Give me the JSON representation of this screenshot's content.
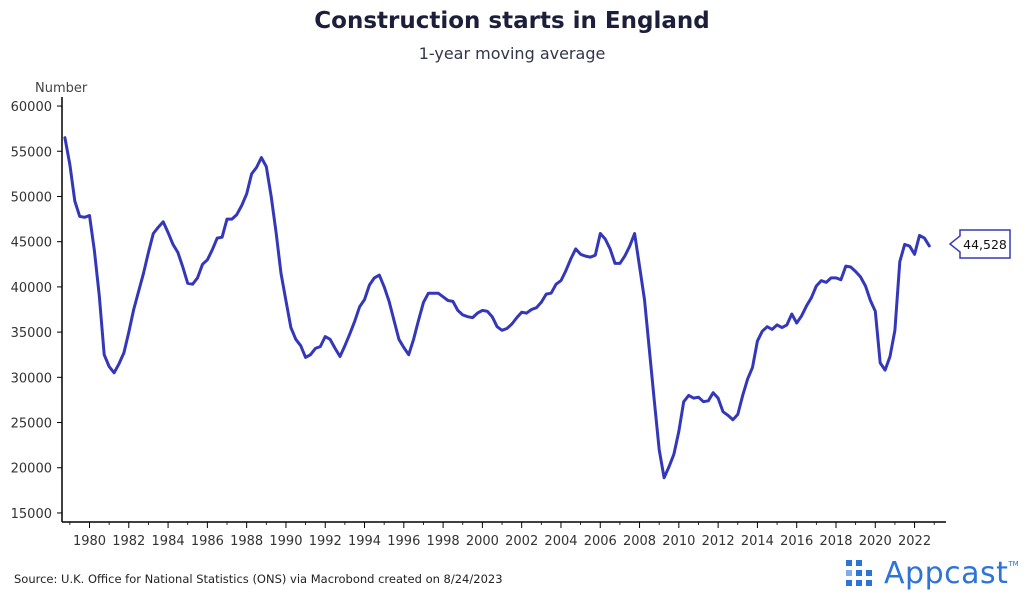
{
  "chart_data": {
    "type": "line",
    "title": "Construction starts in England",
    "subtitle": "1-year moving average",
    "ylabel": "Number",
    "xlabel": "",
    "ylim": [
      14000,
      61000
    ],
    "xlim": [
      1978.6,
      2023.6
    ],
    "y_ticks": [
      15000,
      20000,
      25000,
      30000,
      35000,
      40000,
      45000,
      50000,
      55000,
      60000
    ],
    "x_ticks": [
      1980,
      1982,
      1984,
      1986,
      1988,
      1990,
      1992,
      1994,
      1996,
      1998,
      2000,
      2002,
      2004,
      2006,
      2008,
      2010,
      2012,
      2014,
      2016,
      2018,
      2020,
      2022
    ],
    "color": "#3438b8",
    "last_value_label": "44,528",
    "series": [
      {
        "name": "Construction starts",
        "x": [
          1978.75,
          1979.0,
          1979.25,
          1979.5,
          1979.75,
          1980.0,
          1980.25,
          1980.5,
          1980.75,
          1981.0,
          1981.25,
          1981.5,
          1981.75,
          1982.0,
          1982.25,
          1982.5,
          1982.75,
          1983.0,
          1983.25,
          1983.5,
          1983.75,
          1984.0,
          1984.25,
          1984.5,
          1984.75,
          1985.0,
          1985.25,
          1985.5,
          1985.75,
          1986.0,
          1986.25,
          1986.5,
          1986.75,
          1987.0,
          1987.25,
          1987.5,
          1987.75,
          1988.0,
          1988.25,
          1988.5,
          1988.75,
          1989.0,
          1989.25,
          1989.5,
          1989.75,
          1990.0,
          1990.25,
          1990.5,
          1990.75,
          1991.0,
          1991.25,
          1991.5,
          1991.75,
          1992.0,
          1992.25,
          1992.5,
          1992.75,
          1993.0,
          1993.25,
          1993.5,
          1993.75,
          1994.0,
          1994.25,
          1994.5,
          1994.75,
          1995.0,
          1995.25,
          1995.5,
          1995.75,
          1996.0,
          1996.25,
          1996.5,
          1996.75,
          1997.0,
          1997.25,
          1997.5,
          1997.75,
          1998.0,
          1998.25,
          1998.5,
          1998.75,
          1999.0,
          1999.25,
          1999.5,
          1999.75,
          2000.0,
          2000.25,
          2000.5,
          2000.75,
          2001.0,
          2001.25,
          2001.5,
          2001.75,
          2002.0,
          2002.25,
          2002.5,
          2002.75,
          2003.0,
          2003.25,
          2003.5,
          2003.75,
          2004.0,
          2004.25,
          2004.5,
          2004.75,
          2005.0,
          2005.25,
          2005.5,
          2005.75,
          2006.0,
          2006.25,
          2006.5,
          2006.75,
          2007.0,
          2007.25,
          2007.5,
          2007.75,
          2008.0,
          2008.25,
          2008.5,
          2008.75,
          2009.0,
          2009.25,
          2009.5,
          2009.75,
          2010.0,
          2010.25,
          2010.5,
          2010.75,
          2011.0,
          2011.25,
          2011.5,
          2011.75,
          2012.0,
          2012.25,
          2012.5,
          2012.75,
          2013.0,
          2013.25,
          2013.5,
          2013.75,
          2014.0,
          2014.25,
          2014.5,
          2014.75,
          2015.0,
          2015.25,
          2015.5,
          2015.75,
          2016.0,
          2016.25,
          2016.5,
          2016.75,
          2017.0,
          2017.25,
          2017.5,
          2017.75,
          2018.0,
          2018.25,
          2018.5,
          2018.75,
          2019.0,
          2019.25,
          2019.5,
          2019.75,
          2020.0,
          2020.25,
          2020.5,
          2020.75,
          2021.0,
          2021.25,
          2021.5,
          2021.75,
          2022.0,
          2022.25,
          2022.5,
          2022.75
        ],
        "values": [
          56500,
          53500,
          49500,
          47800,
          47700,
          47900,
          44000,
          39000,
          32500,
          31200,
          30500,
          31500,
          32700,
          35000,
          37500,
          39500,
          41500,
          43800,
          45900,
          46600,
          47200,
          46000,
          44700,
          43800,
          42200,
          40400,
          40300,
          41000,
          42500,
          43000,
          44100,
          45400,
          45500,
          47500,
          47500,
          48000,
          49000,
          50300,
          52500,
          53200,
          54300,
          53300,
          50000,
          46000,
          41500,
          38500,
          35500,
          34200,
          33500,
          32200,
          32500,
          33200,
          33400,
          34500,
          34200,
          33200,
          32300,
          33500,
          34800,
          36200,
          37800,
          38600,
          40200,
          41000,
          41300,
          40000,
          38400,
          36300,
          34200,
          33300,
          32500,
          34200,
          36300,
          38300,
          39300,
          39300,
          39300,
          38900,
          38500,
          38400,
          37400,
          36900,
          36700,
          36600,
          37100,
          37400,
          37300,
          36700,
          35600,
          35200,
          35400,
          35900,
          36600,
          37200,
          37100,
          37500,
          37700,
          38300,
          39200,
          39300,
          40300,
          40700,
          41800,
          43100,
          44200,
          43600,
          43400,
          43300,
          43500,
          45900,
          45300,
          44200,
          42600,
          42600,
          43400,
          44500,
          45900,
          42300,
          38600,
          33000,
          27400,
          22000,
          18900,
          20100,
          21500,
          24000,
          27300,
          28000,
          27700,
          27800,
          27300,
          27400,
          28300,
          27700,
          26200,
          25800,
          25300,
          25900,
          28000,
          29800,
          31100,
          34000,
          35100,
          35600,
          35300,
          35800,
          35500,
          35800,
          37000,
          36000,
          36800,
          37900,
          38800,
          40100,
          40700,
          40500,
          41000,
          41000,
          40800,
          42300,
          42200,
          41700,
          41100,
          40100,
          38500,
          37300,
          31600,
          30800,
          32300,
          35200,
          42800,
          44700,
          44500,
          43600,
          45700,
          45400,
          44528
        ]
      }
    ]
  },
  "footer": {
    "source": "Source: U.K. Office for National Statistics (ONS) via Macrobond created on 8/24/2023",
    "logo_text": "Appcast",
    "logo_tm": "TM"
  }
}
